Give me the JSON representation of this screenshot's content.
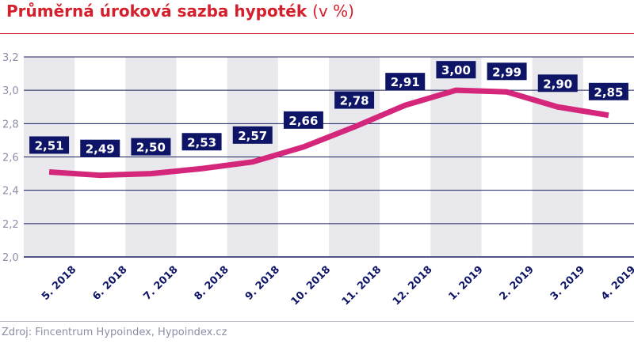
{
  "title": {
    "main": "Průměrná úroková sazba hypoték",
    "unit": "(v %)"
  },
  "source": "Zdroj: Fincentrum Hypoindex, Hypoindex.cz",
  "colors": {
    "title": "#d4202c",
    "line": "#d4267a",
    "label_box": "#0e1466",
    "grid": "#1a1f5e",
    "band": "#e8e8ed"
  },
  "chart_data": {
    "type": "line",
    "title": "Průměrná úroková sazba hypoték (v %)",
    "categories": [
      "5. 2018",
      "6. 2018",
      "7. 2018",
      "8. 2018",
      "9. 2018",
      "10. 2018",
      "11. 2018",
      "12. 2018",
      "1. 2019",
      "2. 2019",
      "3. 2019",
      "4. 2019"
    ],
    "values": [
      2.51,
      2.49,
      2.5,
      2.53,
      2.57,
      2.66,
      2.78,
      2.91,
      3.0,
      2.99,
      2.9,
      2.85
    ],
    "data_labels": [
      "2,51",
      "2,49",
      "2,50",
      "2,53",
      "2,57",
      "2,66",
      "2,78",
      "2,91",
      "3,00",
      "2,99",
      "2,90",
      "2,85"
    ],
    "yticks": [
      "2,0",
      "2,2",
      "2,4",
      "2,6",
      "2,8",
      "3,0",
      "3,2"
    ],
    "ylim": [
      2.0,
      3.2
    ],
    "grid": true,
    "alternating_bands": true
  }
}
